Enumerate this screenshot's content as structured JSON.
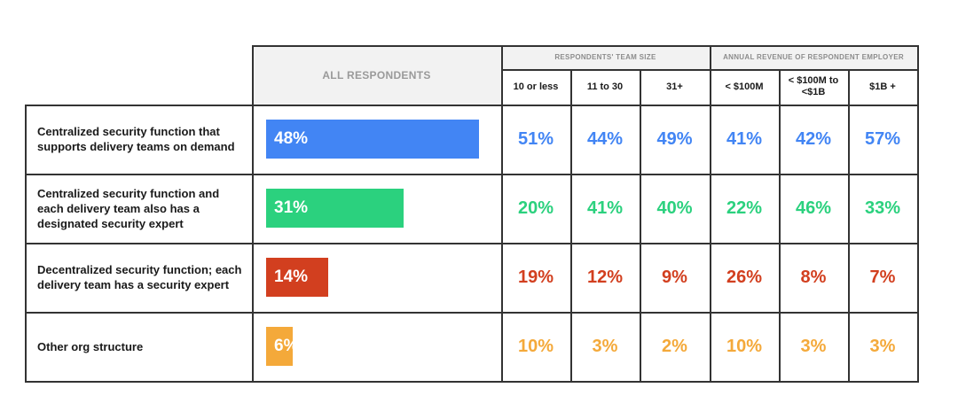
{
  "chart_data": {
    "type": "table",
    "header": {
      "all_label": "ALL RESPONDENTS",
      "groups": [
        {
          "label": "RESPONDENTS' TEAM SIZE",
          "columns": [
            "10 or less",
            "11 to 30",
            "31+"
          ]
        },
        {
          "label": "ANNUAL REVENUE OF RESPONDENT EMPLOYER",
          "columns": [
            "< $100M",
            "< $100M to <$1B",
            "$1B +"
          ]
        }
      ]
    },
    "rows": [
      {
        "label": "Centralized security function that supports delivery teams on demand",
        "all": 48,
        "all_label": "48%",
        "color": "#4285f4",
        "values": [
          "51%",
          "44%",
          "49%",
          "41%",
          "42%",
          "57%"
        ]
      },
      {
        "label": "Centralized security function and each delivery team also has a designated security expert",
        "all": 31,
        "all_label": "31%",
        "color": "#2bd17e",
        "values": [
          "20%",
          "41%",
          "40%",
          "22%",
          "46%",
          "33%"
        ]
      },
      {
        "label": "Decentralized security function; each delivery team has a security expert",
        "all": 14,
        "all_label": "14%",
        "color": "#d23f1f",
        "values": [
          "19%",
          "12%",
          "9%",
          "26%",
          "8%",
          "7%"
        ]
      },
      {
        "label": "Other org structure",
        "all": 6,
        "all_label": "6%",
        "color": "#f4a93a",
        "values": [
          "10%",
          "3%",
          "2%",
          "10%",
          "3%",
          "3%"
        ]
      }
    ]
  }
}
